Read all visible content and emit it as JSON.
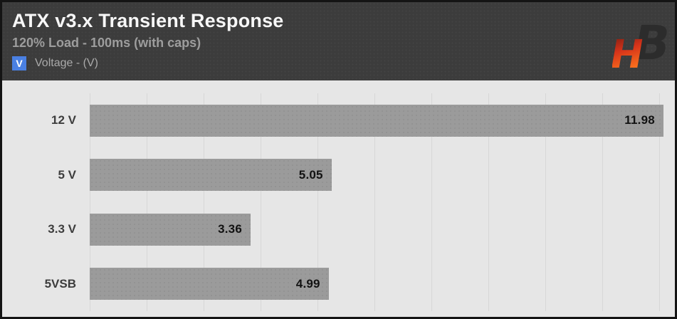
{
  "header": {
    "title": "ATX v3.x Transient Response",
    "subtitle": "120% Load - 100ms (with caps)",
    "legend": {
      "symbol": "V",
      "symbol_bg": "#4a80e2",
      "label": "Voltage - (V)"
    },
    "logo_name": "hardware-busters-hb-logo"
  },
  "chart_data": {
    "type": "bar",
    "orientation": "horizontal",
    "title": "ATX v3.x Transient Response",
    "subtitle": "120% Load - 100ms (with caps)",
    "series_name": "Voltage - (V)",
    "categories": [
      "12 V",
      "5 V",
      "3.3 V",
      "5VSB"
    ],
    "values": [
      11.98,
      5.05,
      3.36,
      4.99
    ],
    "value_labels": [
      "11.98",
      "5.05",
      "3.36",
      "4.99"
    ],
    "xlabel": "",
    "ylabel": "",
    "xlim": [
      0,
      12.1
    ],
    "grid": true,
    "legend_position": "top-left",
    "value_label_position": "inside-end",
    "bar_color": "#9b9b9b",
    "plot_bg": "#e6e6e6",
    "header_bg": "#3c3c3c"
  }
}
